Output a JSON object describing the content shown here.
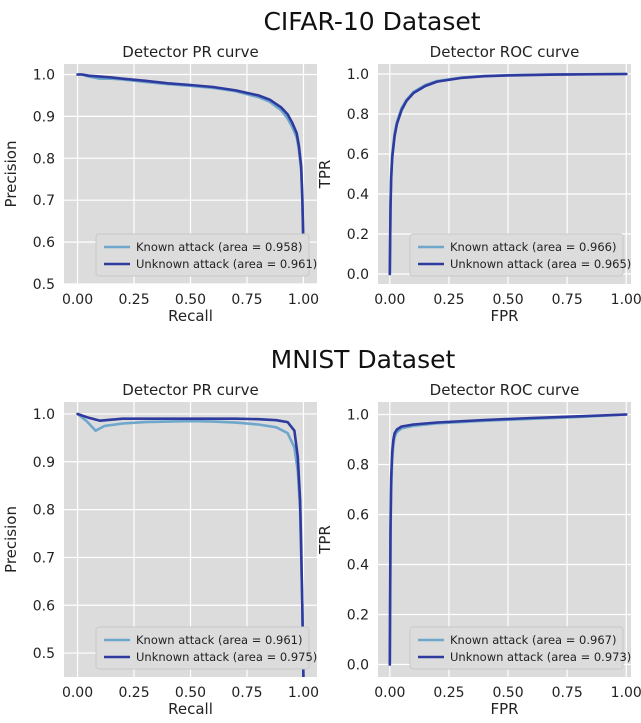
{
  "colors": {
    "known": "#6fa6cc",
    "unknown": "#2f3a9e"
  },
  "sections": [
    {
      "suptitle": "CIFAR-10 Dataset",
      "chart_data": [
        {
          "type": "line",
          "title": "Detector PR curve",
          "xlabel": "Recall",
          "ylabel": "Precision",
          "xlim": [
            -0.06,
            1.06
          ],
          "ylim": [
            0.5,
            1.025
          ],
          "xticks": [
            "0.00",
            "0.25",
            "0.50",
            "0.75",
            "1.00"
          ],
          "yticks": [
            "0.5",
            "0.6",
            "0.7",
            "0.8",
            "0.9",
            "1.0"
          ],
          "grid": true,
          "legend_position": "lower-right",
          "series": [
            {
              "name": "Known attack (area = 0.958)",
              "color": "known",
              "x": [
                0.0,
                0.02,
                0.05,
                0.1,
                0.15,
                0.2,
                0.3,
                0.4,
                0.5,
                0.6,
                0.7,
                0.8,
                0.85,
                0.9,
                0.93,
                0.95,
                0.97,
                0.98,
                0.99,
                0.995,
                1.0
              ],
              "y": [
                1.0,
                1.0,
                0.995,
                0.99,
                0.99,
                0.988,
                0.982,
                0.977,
                0.973,
                0.968,
                0.96,
                0.946,
                0.935,
                0.915,
                0.895,
                0.875,
                0.85,
                0.82,
                0.77,
                0.7,
                0.59
              ]
            },
            {
              "name": "Unknown attack (area = 0.961)",
              "color": "unknown",
              "x": [
                0.0,
                0.02,
                0.05,
                0.1,
                0.15,
                0.2,
                0.3,
                0.4,
                0.5,
                0.6,
                0.7,
                0.8,
                0.85,
                0.9,
                0.93,
                0.95,
                0.97,
                0.98,
                0.99,
                0.995,
                1.0
              ],
              "y": [
                1.0,
                1.0,
                0.997,
                0.995,
                0.993,
                0.99,
                0.985,
                0.979,
                0.975,
                0.97,
                0.962,
                0.95,
                0.94,
                0.922,
                0.905,
                0.885,
                0.86,
                0.83,
                0.78,
                0.71,
                0.59
              ]
            }
          ]
        },
        {
          "type": "line",
          "title": "Detector ROC curve",
          "xlabel": "FPR",
          "ylabel": "TPR",
          "xlim": [
            -0.05,
            1.02
          ],
          "ylim": [
            -0.05,
            1.05
          ],
          "xticks": [
            "0.00",
            "0.25",
            "0.50",
            "0.75",
            "1.00"
          ],
          "yticks": [
            "0.0",
            "0.2",
            "0.4",
            "0.6",
            "0.8",
            "1.0"
          ],
          "grid": true,
          "legend_position": "lower-right",
          "series": [
            {
              "name": "Known attack (area = 0.966)",
              "color": "known",
              "x": [
                0.0,
                0.003,
                0.006,
                0.01,
                0.02,
                0.03,
                0.05,
                0.07,
                0.1,
                0.15,
                0.2,
                0.3,
                0.4,
                0.5,
                0.7,
                1.0
              ],
              "y": [
                0.0,
                0.35,
                0.5,
                0.6,
                0.7,
                0.76,
                0.83,
                0.87,
                0.91,
                0.945,
                0.965,
                0.982,
                0.99,
                0.994,
                0.998,
                1.0
              ]
            },
            {
              "name": "Unknown attack (area = 0.965)",
              "color": "unknown",
              "x": [
                0.0,
                0.003,
                0.006,
                0.01,
                0.02,
                0.03,
                0.05,
                0.07,
                0.1,
                0.15,
                0.2,
                0.3,
                0.4,
                0.5,
                0.7,
                1.0
              ],
              "y": [
                0.0,
                0.33,
                0.48,
                0.58,
                0.69,
                0.75,
                0.82,
                0.865,
                0.905,
                0.94,
                0.962,
                0.98,
                0.989,
                0.993,
                0.997,
                1.0
              ]
            }
          ]
        }
      ]
    },
    {
      "suptitle": "MNIST Dataset",
      "chart_data": [
        {
          "type": "line",
          "title": "Detector PR curve",
          "xlabel": "Recall",
          "ylabel": "Precision",
          "xlim": [
            -0.06,
            1.06
          ],
          "ylim": [
            0.45,
            1.025
          ],
          "xticks": [
            "0.00",
            "0.25",
            "0.50",
            "0.75",
            "1.00"
          ],
          "yticks": [
            "0.5",
            "0.6",
            "0.7",
            "0.8",
            "0.9",
            "1.0"
          ],
          "grid": true,
          "legend_position": "lower-right",
          "series": [
            {
              "name": "Known attack (area = 0.961)",
              "color": "known",
              "x": [
                0.0,
                0.04,
                0.08,
                0.12,
                0.2,
                0.3,
                0.4,
                0.5,
                0.6,
                0.7,
                0.8,
                0.88,
                0.93,
                0.96,
                0.975,
                0.985,
                0.99,
                0.995,
                1.0
              ],
              "y": [
                1.0,
                0.985,
                0.965,
                0.975,
                0.98,
                0.983,
                0.984,
                0.985,
                0.984,
                0.982,
                0.978,
                0.972,
                0.96,
                0.93,
                0.88,
                0.8,
                0.7,
                0.6,
                0.45
              ]
            },
            {
              "name": "Unknown attack (area = 0.975)",
              "color": "unknown",
              "x": [
                0.0,
                0.05,
                0.1,
                0.2,
                0.3,
                0.4,
                0.5,
                0.6,
                0.7,
                0.8,
                0.88,
                0.93,
                0.96,
                0.975,
                0.985,
                0.99,
                0.995,
                1.0
              ],
              "y": [
                1.0,
                0.992,
                0.986,
                0.99,
                0.99,
                0.99,
                0.99,
                0.99,
                0.99,
                0.989,
                0.987,
                0.983,
                0.965,
                0.91,
                0.82,
                0.72,
                0.6,
                0.45
              ]
            }
          ]
        },
        {
          "type": "line",
          "title": "Detector ROC curve",
          "xlabel": "FPR",
          "ylabel": "TPR",
          "xlim": [
            -0.05,
            1.02
          ],
          "ylim": [
            -0.05,
            1.05
          ],
          "xticks": [
            "0.00",
            "0.25",
            "0.50",
            "0.75",
            "1.00"
          ],
          "yticks": [
            "0.0",
            "0.2",
            "0.4",
            "0.6",
            "0.8",
            "1.0"
          ],
          "grid": true,
          "legend_position": "lower-right",
          "series": [
            {
              "name": "Known attack (area = 0.967)",
              "color": "known",
              "x": [
                0.0,
                0.003,
                0.006,
                0.01,
                0.015,
                0.02,
                0.03,
                0.05,
                0.1,
                0.2,
                0.4,
                0.6,
                0.8,
                1.0
              ],
              "y": [
                0.0,
                0.5,
                0.7,
                0.82,
                0.88,
                0.91,
                0.93,
                0.945,
                0.955,
                0.965,
                0.975,
                0.983,
                0.99,
                1.0
              ]
            },
            {
              "name": "Unknown attack (area = 0.973)",
              "color": "unknown",
              "x": [
                0.0,
                0.003,
                0.006,
                0.01,
                0.015,
                0.02,
                0.03,
                0.05,
                0.1,
                0.2,
                0.4,
                0.6,
                0.8,
                1.0
              ],
              "y": [
                0.0,
                0.55,
                0.75,
                0.85,
                0.9,
                0.925,
                0.94,
                0.952,
                0.96,
                0.968,
                0.978,
                0.986,
                0.993,
                1.0
              ]
            }
          ]
        }
      ]
    }
  ]
}
